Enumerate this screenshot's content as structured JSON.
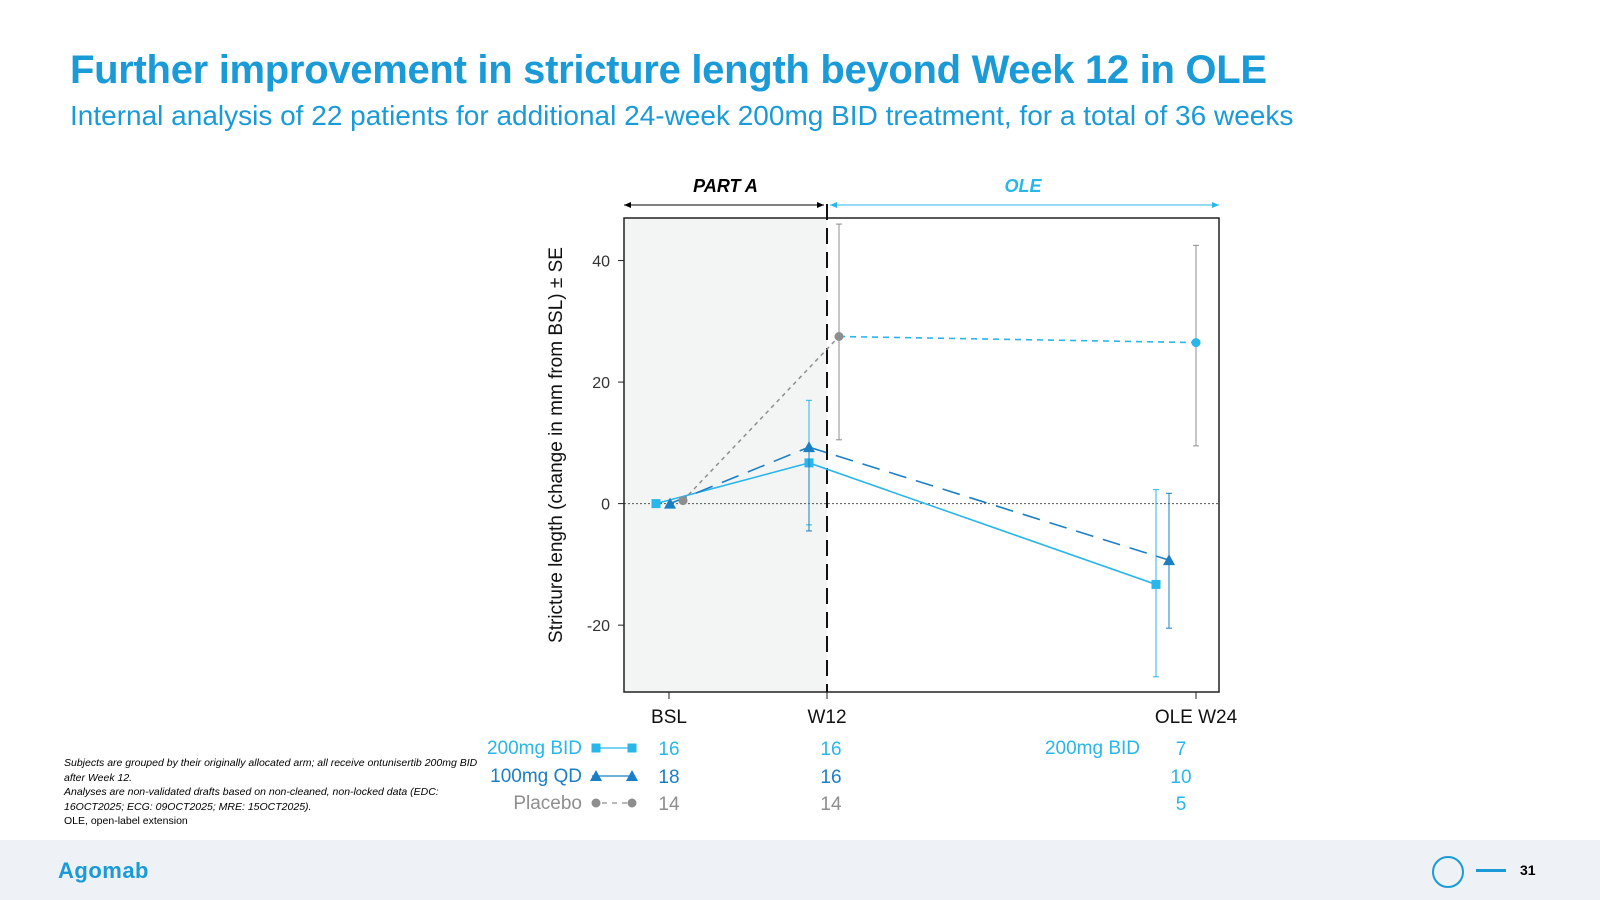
{
  "slide": {
    "title": "Further improvement in stricture length beyond Week 12 in OLE",
    "subtitle": "Internal analysis of 22 patients for additional 24-week 200mg BID treatment, for a total of 36 weeks",
    "page_number": "31",
    "logo": "Agomab"
  },
  "footnotes": [
    "Subjects are grouped by their originally allocated arm; all receive ontunisertib 200mg BID after Week 12.",
    "Analyses are non-validated drafts based on non-cleaned, non-locked data (EDC: 16OCT2025; ECG: 09OCT2025; MRE: 15OCT2025).",
    "OLE, open-label extension"
  ],
  "chart_data": {
    "type": "line",
    "ylabel": "Stricture length (change in mm from BSL) ± SE",
    "categories": [
      "BSL",
      "W12",
      "OLE W24"
    ],
    "ylim": [
      -31,
      47
    ],
    "yticks": [
      -20,
      0,
      20,
      40
    ],
    "periods": [
      {
        "label": "PART A",
        "color": "#000000"
      },
      {
        "label": "OLE",
        "color": "#29b6ea"
      }
    ],
    "series": [
      {
        "name": "200mg BID",
        "color": "#29b6ea",
        "style": "solid",
        "marker": "square",
        "values": [
          0,
          6.7,
          -13.3
        ],
        "se_low": [
          null,
          -3.5,
          -28.5
        ],
        "se_high": [
          null,
          17,
          2.3
        ],
        "n": [
          16,
          16,
          7
        ]
      },
      {
        "name": "100mg QD",
        "color": "#1b7fc4",
        "style": "longdash",
        "marker": "triangle",
        "values": [
          0,
          9.3,
          -9.3
        ],
        "se_low": [
          null,
          -4.5,
          -20.5
        ],
        "se_high": [
          null,
          9.3,
          1.7
        ],
        "n": [
          18,
          16,
          10
        ]
      },
      {
        "name": "Placebo",
        "color": "#8e8e8e",
        "style": "dotted",
        "marker": "circle",
        "values": [
          0.5,
          27.5,
          26.5
        ],
        "se_low": [
          null,
          10.5,
          9.5
        ],
        "se_high": [
          null,
          46,
          42.5
        ],
        "n": [
          14,
          14,
          5
        ]
      }
    ],
    "ole_series": {
      "name": "200mg BID",
      "color": "#29b6ea"
    }
  }
}
